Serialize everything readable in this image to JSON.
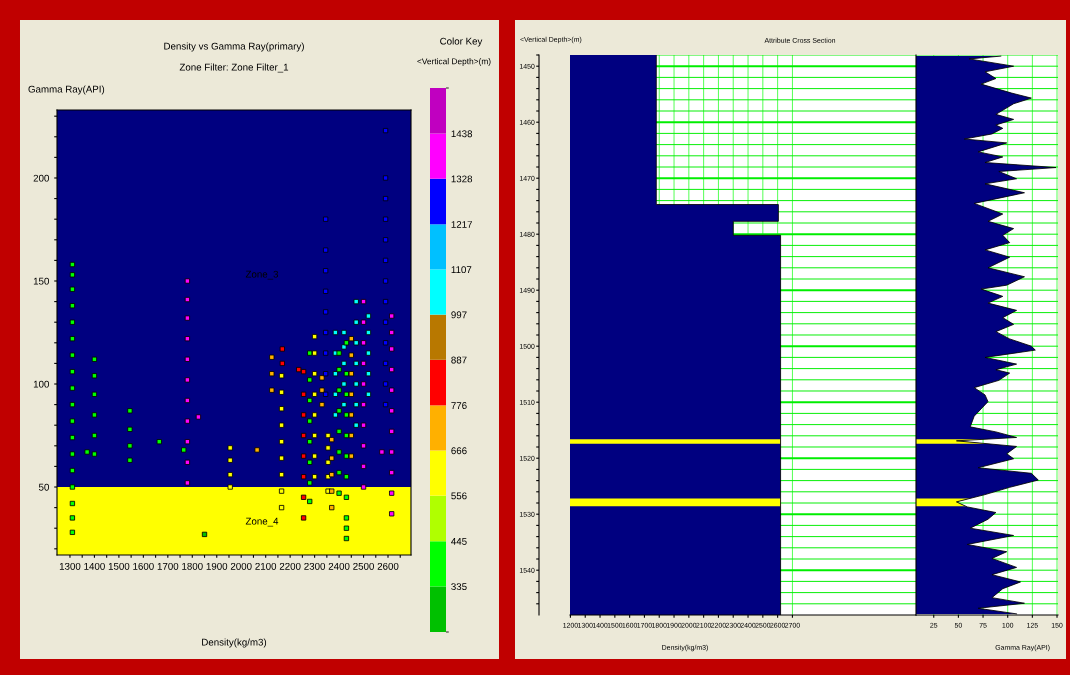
{
  "chart_data": [
    {
      "type": "scatter",
      "title": "Density vs Gamma Ray(primary)",
      "subtitle": "Zone Filter: Zone Filter_1",
      "xlabel": "Density(kg/m3)",
      "ylabel": "Gamma Ray(API)",
      "legend_title": "Color Key",
      "clabel": "<Vertical Depth>(m)",
      "marker": "square",
      "annotations": [
        "Zone_3",
        "Zone_4"
      ],
      "bands": [
        {
          "axis": "y",
          "from": 17,
          "to": 50,
          "color": "#ffff00"
        },
        {
          "axis": "y",
          "from": 50,
          "to": 233,
          "color": "#000080"
        }
      ],
      "clim": [
        224,
        1549
      ],
      "cticks": [
        335,
        445,
        556,
        666,
        776,
        887,
        997,
        1107,
        1217,
        1328,
        1438
      ],
      "colors": [
        "#00c000",
        "#00ff00",
        "#b0ff00",
        "#ffff00",
        "#ffb000",
        "#ff0000",
        "#b87800",
        "#00ffff",
        "#00c0ff",
        "#0000ff",
        "#ff00ff",
        "#c000c0"
      ],
      "xlim": [
        1247,
        2694
      ],
      "ylim": [
        17,
        233
      ],
      "xticks": [
        1300,
        {
          "value": 1350,
          "label": null
        },
        1400,
        {
          "value": 1450,
          "label": null
        },
        1500,
        {
          "value": 1550,
          "label": null
        },
        1600,
        {
          "value": 1650,
          "label": null
        },
        1700,
        {
          "value": 1750,
          "label": null
        },
        1800,
        {
          "value": 1850,
          "label": null
        },
        1900,
        {
          "value": 1950,
          "label": null
        },
        2000,
        {
          "value": 2050,
          "label": null
        },
        2100,
        {
          "value": 2150,
          "label": null
        },
        2200,
        {
          "value": 2250,
          "label": null
        },
        2300,
        {
          "value": 2350,
          "label": null
        },
        2400,
        {
          "value": 2450,
          "label": null
        },
        2500,
        {
          "value": 2550,
          "label": null
        },
        2600,
        {
          "value": 2650,
          "label": null
        }
      ],
      "yticks": [
        {
          "value": 20,
          "label": null
        },
        {
          "value": 30,
          "label": null
        },
        {
          "value": 40,
          "label": null
        },
        50,
        {
          "value": 60,
          "label": null
        },
        {
          "value": 70,
          "label": null
        },
        {
          "value": 80,
          "label": null
        },
        {
          "value": 90,
          "label": null
        },
        100,
        {
          "value": 110,
          "label": null
        },
        {
          "value": 120,
          "label": null
        },
        {
          "value": 130,
          "label": null
        },
        {
          "value": 140,
          "label": null
        },
        150,
        {
          "value": 160,
          "label": null
        },
        {
          "value": 170,
          "label": null
        },
        {
          "value": 180,
          "label": null
        },
        {
          "value": 190,
          "label": null
        },
        200,
        {
          "value": 210,
          "label": null
        },
        {
          "value": 220,
          "label": null
        },
        {
          "value": 230,
          "label": null
        }
      ],
      "series": [
        {
          "x": [
            1310,
            1310,
            1310,
            1310,
            1310,
            1310,
            1310,
            1310,
            1310,
            1310,
            1310,
            1310,
            1310,
            1310,
            1310,
            1310,
            1310,
            1310
          ],
          "values": [
            28,
            35,
            42,
            50,
            58,
            66,
            74,
            82,
            90,
            98,
            106,
            114,
            122,
            130,
            138,
            146,
            153,
            158
          ],
          "cvalues": [
            390,
            390,
            390,
            390,
            390,
            390,
            390,
            390,
            390,
            390,
            390,
            390,
            390,
            390,
            390,
            390,
            390,
            390
          ]
        },
        {
          "x": [
            1370,
            1400,
            1400,
            1400,
            1400,
            1400,
            1400,
            1545,
            1545,
            1545,
            1545,
            1665,
            1765
          ],
          "values": [
            67,
            66,
            75,
            85,
            95,
            104,
            112,
            63,
            70,
            78,
            87,
            72,
            68
          ],
          "cvalues": [
            390,
            390,
            390,
            390,
            390,
            390,
            390,
            390,
            390,
            390,
            390,
            390,
            390
          ]
        },
        {
          "x": [
            1780,
            1780,
            1780,
            1780,
            1780,
            1780,
            1780,
            1780,
            1780,
            1780,
            1780,
            1825
          ],
          "values": [
            52,
            62,
            72,
            82,
            92,
            102,
            112,
            122,
            132,
            141,
            150,
            84
          ],
          "cvalues": [
            1383,
            1383,
            1383,
            1383,
            1383,
            1383,
            1383,
            1383,
            1383,
            1383,
            1383,
            1383
          ]
        },
        {
          "x": [
            1850
          ],
          "values": [
            27
          ],
          "cvalues": [
            280
          ]
        },
        {
          "x": [
            1955,
            1955,
            1955,
            1955
          ],
          "values": [
            50,
            56,
            63,
            69
          ],
          "cvalues": [
            611,
            611,
            611,
            611
          ]
        },
        {
          "x": [
            2065,
            2125,
            2125,
            2125
          ],
          "values": [
            68,
            97,
            105,
            113
          ],
          "cvalues": [
            721,
            721,
            721,
            721
          ]
        },
        {
          "x": [
            2165,
            2165,
            2165,
            2165,
            2165,
            2165,
            2165,
            2165,
            2165
          ],
          "values": [
            40,
            48,
            56,
            64,
            72,
            80,
            88,
            96,
            104
          ],
          "cvalues": [
            611,
            611,
            611,
            611,
            611,
            611,
            611,
            611,
            611
          ]
        },
        {
          "x": [
            2168,
            2168,
            2235
          ],
          "values": [
            110,
            117,
            107
          ],
          "cvalues": [
            832,
            832,
            832
          ]
        },
        {
          "x": [
            2255,
            2255,
            2255,
            2255,
            2255,
            2255,
            2255,
            2255
          ],
          "values": [
            35,
            45,
            55,
            65,
            75,
            85,
            95,
            106
          ],
          "cvalues": [
            832,
            832,
            832,
            832,
            832,
            832,
            832,
            832
          ]
        },
        {
          "x": [
            2280,
            2280,
            2280,
            2280,
            2280,
            2280,
            2280,
            2280
          ],
          "values": [
            43,
            52,
            62,
            72,
            82,
            92,
            102,
            115
          ],
          "cvalues": [
            390,
            390,
            390,
            390,
            390,
            390,
            390,
            390
          ]
        },
        {
          "x": [
            2300,
            2300,
            2300,
            2300,
            2300,
            2300,
            2300,
            2300
          ],
          "values": [
            55,
            65,
            75,
            85,
            95,
            105,
            115,
            123
          ],
          "cvalues": [
            611,
            611,
            611,
            611,
            611,
            611,
            611,
            611
          ]
        },
        {
          "x": [
            2330,
            2330,
            2330
          ],
          "values": [
            90,
            97,
            103
          ],
          "cvalues": [
            721,
            721,
            721
          ]
        },
        {
          "x": [
            2345,
            2345,
            2345,
            2345,
            2345,
            2345,
            2345,
            2345,
            2345
          ],
          "values": [
            95,
            105,
            115,
            125,
            135,
            145,
            155,
            165,
            180
          ],
          "cvalues": [
            1272,
            1272,
            1272,
            1272,
            1272,
            1272,
            1272,
            1272,
            1272
          ]
        },
        {
          "x": [
            2355,
            2355,
            2355,
            2355,
            2355
          ],
          "values": [
            48,
            55,
            62,
            69,
            75
          ],
          "cvalues": [
            611,
            611,
            611,
            611,
            611
          ]
        },
        {
          "x": [
            2370,
            2370,
            2370,
            2370,
            2370
          ],
          "values": [
            40,
            48,
            56,
            64,
            73
          ],
          "cvalues": [
            721,
            721,
            721,
            721,
            721
          ]
        },
        {
          "x": [
            2385,
            2385,
            2385,
            2385,
            2385,
            2420,
            2420,
            2420,
            2420,
            2420
          ],
          "values": [
            85,
            95,
            105,
            115,
            125,
            90,
            100,
            110,
            118,
            125
          ],
          "cvalues": [
            1052,
            1052,
            1052,
            1052,
            1052,
            1052,
            1052,
            1052,
            1052,
            1052
          ]
        },
        {
          "x": [
            2400,
            2400,
            2400,
            2400,
            2400,
            2400,
            2400,
            2400
          ],
          "values": [
            47,
            57,
            67,
            77,
            87,
            97,
            107,
            115
          ],
          "cvalues": [
            390,
            390,
            390,
            390,
            390,
            390,
            390,
            390
          ]
        },
        {
          "x": [
            2430,
            2430,
            2430,
            2430,
            2430,
            2430,
            2430,
            2430,
            2430,
            2430,
            2430
          ],
          "values": [
            25,
            30,
            35,
            45,
            55,
            65,
            75,
            85,
            95,
            105,
            120
          ],
          "cvalues": [
            390,
            390,
            390,
            390,
            390,
            390,
            390,
            390,
            390,
            390,
            390
          ]
        },
        {
          "x": [
            2450,
            2450,
            2450,
            2450,
            2450,
            2450,
            2450
          ],
          "values": [
            65,
            75,
            85,
            95,
            105,
            114,
            122
          ],
          "cvalues": [
            721,
            721,
            721,
            721,
            721,
            721,
            721
          ]
        },
        {
          "x": [
            2470,
            2470,
            2470,
            2470,
            2470,
            2470,
            2470,
            2520,
            2520,
            2520,
            2520,
            2520
          ],
          "values": [
            80,
            90,
            100,
            110,
            120,
            130,
            140,
            95,
            105,
            115,
            125,
            133
          ],
          "cvalues": [
            1052,
            1052,
            1052,
            1052,
            1052,
            1052,
            1052,
            1052,
            1052,
            1052,
            1052,
            1052
          ]
        },
        {
          "x": [
            2500,
            2500,
            2500,
            2500,
            2500,
            2500,
            2500,
            2500,
            2500,
            2500,
            2575
          ],
          "values": [
            50,
            60,
            70,
            80,
            90,
            100,
            110,
            120,
            130,
            140,
            67
          ],
          "cvalues": [
            1383,
            1383,
            1383,
            1383,
            1383,
            1383,
            1383,
            1383,
            1383,
            1383,
            1383
          ]
        },
        {
          "x": [
            2590,
            2590,
            2590,
            2590,
            2590,
            2590,
            2590,
            2590,
            2590,
            2590,
            2590,
            2590,
            2590
          ],
          "values": [
            90,
            100,
            110,
            120,
            130,
            140,
            150,
            160,
            170,
            180,
            190,
            200,
            223
          ],
          "cvalues": [
            1272,
            1272,
            1272,
            1272,
            1272,
            1272,
            1272,
            1272,
            1272,
            1272,
            1272,
            1272,
            1272
          ]
        },
        {
          "x": [
            2615,
            2615,
            2615,
            2615,
            2615,
            2615,
            2615,
            2615,
            2615,
            2615,
            2615
          ],
          "values": [
            37,
            47,
            57,
            67,
            77,
            87,
            97,
            107,
            117,
            125,
            133
          ],
          "cvalues": [
            1383,
            1383,
            1383,
            1383,
            1383,
            1383,
            1383,
            1383,
            1383,
            1383,
            1383
          ]
        }
      ]
    },
    {
      "type": "area",
      "orientation": "horizontal",
      "title": "Attribute Cross Section",
      "ylabel": "<Vertical Depth>(m)",
      "xlabel": "Density(kg/m3)",
      "grid": true,
      "xlim": [
        1197,
        3535
      ],
      "ylim": [
        1548,
        1448
      ],
      "xticks": [
        1200,
        1300,
        1400,
        1500,
        1600,
        1700,
        1800,
        1900,
        2000,
        2100,
        2200,
        2300,
        2400,
        2500,
        2600,
        2700
      ],
      "yticks": [
        {
          "value": 1448,
          "label": null
        },
        1450,
        {
          "value": 1452,
          "label": null
        },
        {
          "value": 1454,
          "label": null
        },
        {
          "value": 1456,
          "label": null
        },
        {
          "value": 1458,
          "label": null
        },
        1460,
        {
          "value": 1462,
          "label": null
        },
        {
          "value": 1464,
          "label": null
        },
        {
          "value": 1466,
          "label": null
        },
        {
          "value": 1468,
          "label": null
        },
        1470,
        {
          "value": 1472,
          "label": null
        },
        {
          "value": 1474,
          "label": null
        },
        {
          "value": 1476,
          "label": null
        },
        {
          "value": 1478,
          "label": null
        },
        1480,
        {
          "value": 1482,
          "label": null
        },
        {
          "value": 1484,
          "label": null
        },
        {
          "value": 1486,
          "label": null
        },
        {
          "value": 1488,
          "label": null
        },
        1490,
        {
          "value": 1492,
          "label": null
        },
        {
          "value": 1494,
          "label": null
        },
        {
          "value": 1496,
          "label": null
        },
        {
          "value": 1498,
          "label": null
        },
        1500,
        {
          "value": 1502,
          "label": null
        },
        {
          "value": 1504,
          "label": null
        },
        {
          "value": 1506,
          "label": null
        },
        {
          "value": 1508,
          "label": null
        },
        1510,
        {
          "value": 1512,
          "label": null
        },
        {
          "value": 1514,
          "label": null
        },
        {
          "value": 1516,
          "label": null
        },
        {
          "value": 1518,
          "label": null
        },
        1520,
        {
          "value": 1522,
          "label": null
        },
        {
          "value": 1524,
          "label": null
        },
        {
          "value": 1526,
          "label": null
        },
        {
          "value": 1528,
          "label": null
        },
        1530,
        {
          "value": 1532,
          "label": null
        },
        {
          "value": 1534,
          "label": null
        },
        {
          "value": 1536,
          "label": null
        },
        {
          "value": 1538,
          "label": null
        },
        1540,
        {
          "value": 1542,
          "label": null
        },
        {
          "value": 1544,
          "label": null
        },
        {
          "value": 1546,
          "label": null
        }
      ],
      "bands": [
        {
          "axis": "y",
          "from": 1516.6,
          "to": 1517.4,
          "color": "#ffff00"
        },
        {
          "axis": "y",
          "from": 1527.2,
          "to": 1528.6,
          "color": "#ffff00"
        }
      ],
      "series": [
        {
          "color": "#000080",
          "x": [
            1448,
            1474.7,
            1474.7,
            1477.7,
            1477.7,
            1480.2,
            1480.2,
            1548
          ],
          "values": [
            1780,
            1780,
            2605,
            2605,
            2300,
            2300,
            2620,
            2620
          ]
        }
      ]
    },
    {
      "type": "area",
      "orientation": "horizontal",
      "xlabel": "Gamma Ray(API)",
      "grid": true,
      "tick_labels": "x",
      "xlim": [
        7,
        151
      ],
      "ylim": [
        1548,
        1448
      ],
      "xticks": [
        25,
        50,
        75,
        100,
        125,
        150
      ],
      "yticks": [
        {
          "value": 1448,
          "label": null
        },
        {
          "value": 1450,
          "label": null
        },
        {
          "value": 1452,
          "label": null
        },
        {
          "value": 1454,
          "label": null
        },
        {
          "value": 1456,
          "label": null
        },
        {
          "value": 1458,
          "label": null
        },
        {
          "value": 1460,
          "label": null
        },
        {
          "value": 1462,
          "label": null
        },
        {
          "value": 1464,
          "label": null
        },
        {
          "value": 1466,
          "label": null
        },
        {
          "value": 1468,
          "label": null
        },
        {
          "value": 1470,
          "label": null
        },
        {
          "value": 1472,
          "label": null
        },
        {
          "value": 1474,
          "label": null
        },
        {
          "value": 1476,
          "label": null
        },
        {
          "value": 1478,
          "label": null
        },
        {
          "value": 1480,
          "label": null
        },
        {
          "value": 1482,
          "label": null
        },
        {
          "value": 1484,
          "label": null
        },
        {
          "value": 1486,
          "label": null
        },
        {
          "value": 1488,
          "label": null
        },
        {
          "value": 1490,
          "label": null
        },
        {
          "value": 1492,
          "label": null
        },
        {
          "value": 1494,
          "label": null
        },
        {
          "value": 1496,
          "label": null
        },
        {
          "value": 1498,
          "label": null
        },
        {
          "value": 1500,
          "label": null
        },
        {
          "value": 1502,
          "label": null
        },
        {
          "value": 1504,
          "label": null
        },
        {
          "value": 1506,
          "label": null
        },
        {
          "value": 1508,
          "label": null
        },
        {
          "value": 1510,
          "label": null
        },
        {
          "value": 1512,
          "label": null
        },
        {
          "value": 1514,
          "label": null
        },
        {
          "value": 1516,
          "label": null
        },
        {
          "value": 1518,
          "label": null
        },
        {
          "value": 1520,
          "label": null
        },
        {
          "value": 1522,
          "label": null
        },
        {
          "value": 1524,
          "label": null
        },
        {
          "value": 1526,
          "label": null
        },
        {
          "value": 1528,
          "label": null
        },
        {
          "value": 1530,
          "label": null
        },
        {
          "value": 1532,
          "label": null
        },
        {
          "value": 1534,
          "label": null
        },
        {
          "value": 1536,
          "label": null
        },
        {
          "value": 1538,
          "label": null
        },
        {
          "value": 1540,
          "label": null
        },
        {
          "value": 1542,
          "label": null
        },
        {
          "value": 1544,
          "label": null
        },
        {
          "value": 1546,
          "label": null
        }
      ],
      "bands": [
        {
          "axis": "y",
          "from": 1516.6,
          "to": 1517.4,
          "color": "#ffff00"
        },
        {
          "axis": "y",
          "from": 1527.2,
          "to": 1528.6,
          "color": "#ffff00"
        }
      ],
      "series": [
        {
          "color": "#000080",
          "x": [
            1448.2,
            1448.7,
            1450,
            1451,
            1452.2,
            1453.2,
            1454.8,
            1455.7,
            1456.7,
            1458.6,
            1459.5,
            1460.5,
            1461.1,
            1462.1,
            1463,
            1463.7,
            1465.3,
            1466.2,
            1467.2,
            1468.1,
            1468.8,
            1470.1,
            1471,
            1472.6,
            1474.5,
            1476.4,
            1477.7,
            1479,
            1480.2,
            1481.5,
            1482.8,
            1484.1,
            1486,
            1487.6,
            1489.1,
            1489.8,
            1491.1,
            1492.3,
            1493.6,
            1494.9,
            1496.1,
            1497.4,
            1498.7,
            1500,
            1500.7,
            1502,
            1503.2,
            1504.2,
            1504.8,
            1506.1,
            1507.4,
            1508.7,
            1509.9,
            1511.2,
            1512.5,
            1514.4,
            1515.3,
            1516.3,
            1516.9,
            1517.9,
            1519.2,
            1520.1,
            1521.7,
            1522.7,
            1523.9,
            1525.2,
            1526.5,
            1527.8,
            1528.7,
            1529.7,
            1530.9,
            1532.5,
            1533.8,
            1535.4,
            1536.7,
            1537.9,
            1539.5,
            1540.8,
            1542.1,
            1543.3,
            1544.9,
            1545.9,
            1546.8,
            1547.8
          ],
          "values": [
            93,
            61,
            106,
            77,
            88,
            73,
            104,
            124,
            106,
            88,
            106,
            88,
            95,
            84,
            56,
            99,
            70,
            95,
            77,
            149,
            91,
            109,
            77,
            117,
            66,
            95,
            80,
            106,
            95,
            102,
            77,
            102,
            80,
            117,
            99,
            73,
            95,
            80,
            109,
            95,
            106,
            88,
            102,
            124,
            128,
            77,
            109,
            88,
            102,
            91,
            66,
            77,
            80,
            73,
            66,
            62,
            88,
            109,
            48,
            109,
            99,
            106,
            70,
            124,
            131,
            102,
            77,
            48,
            59,
            88,
            80,
            62,
            106,
            59,
            99,
            84,
            109,
            84,
            113,
            95,
            84,
            117,
            70,
            109
          ]
        }
      ]
    }
  ]
}
